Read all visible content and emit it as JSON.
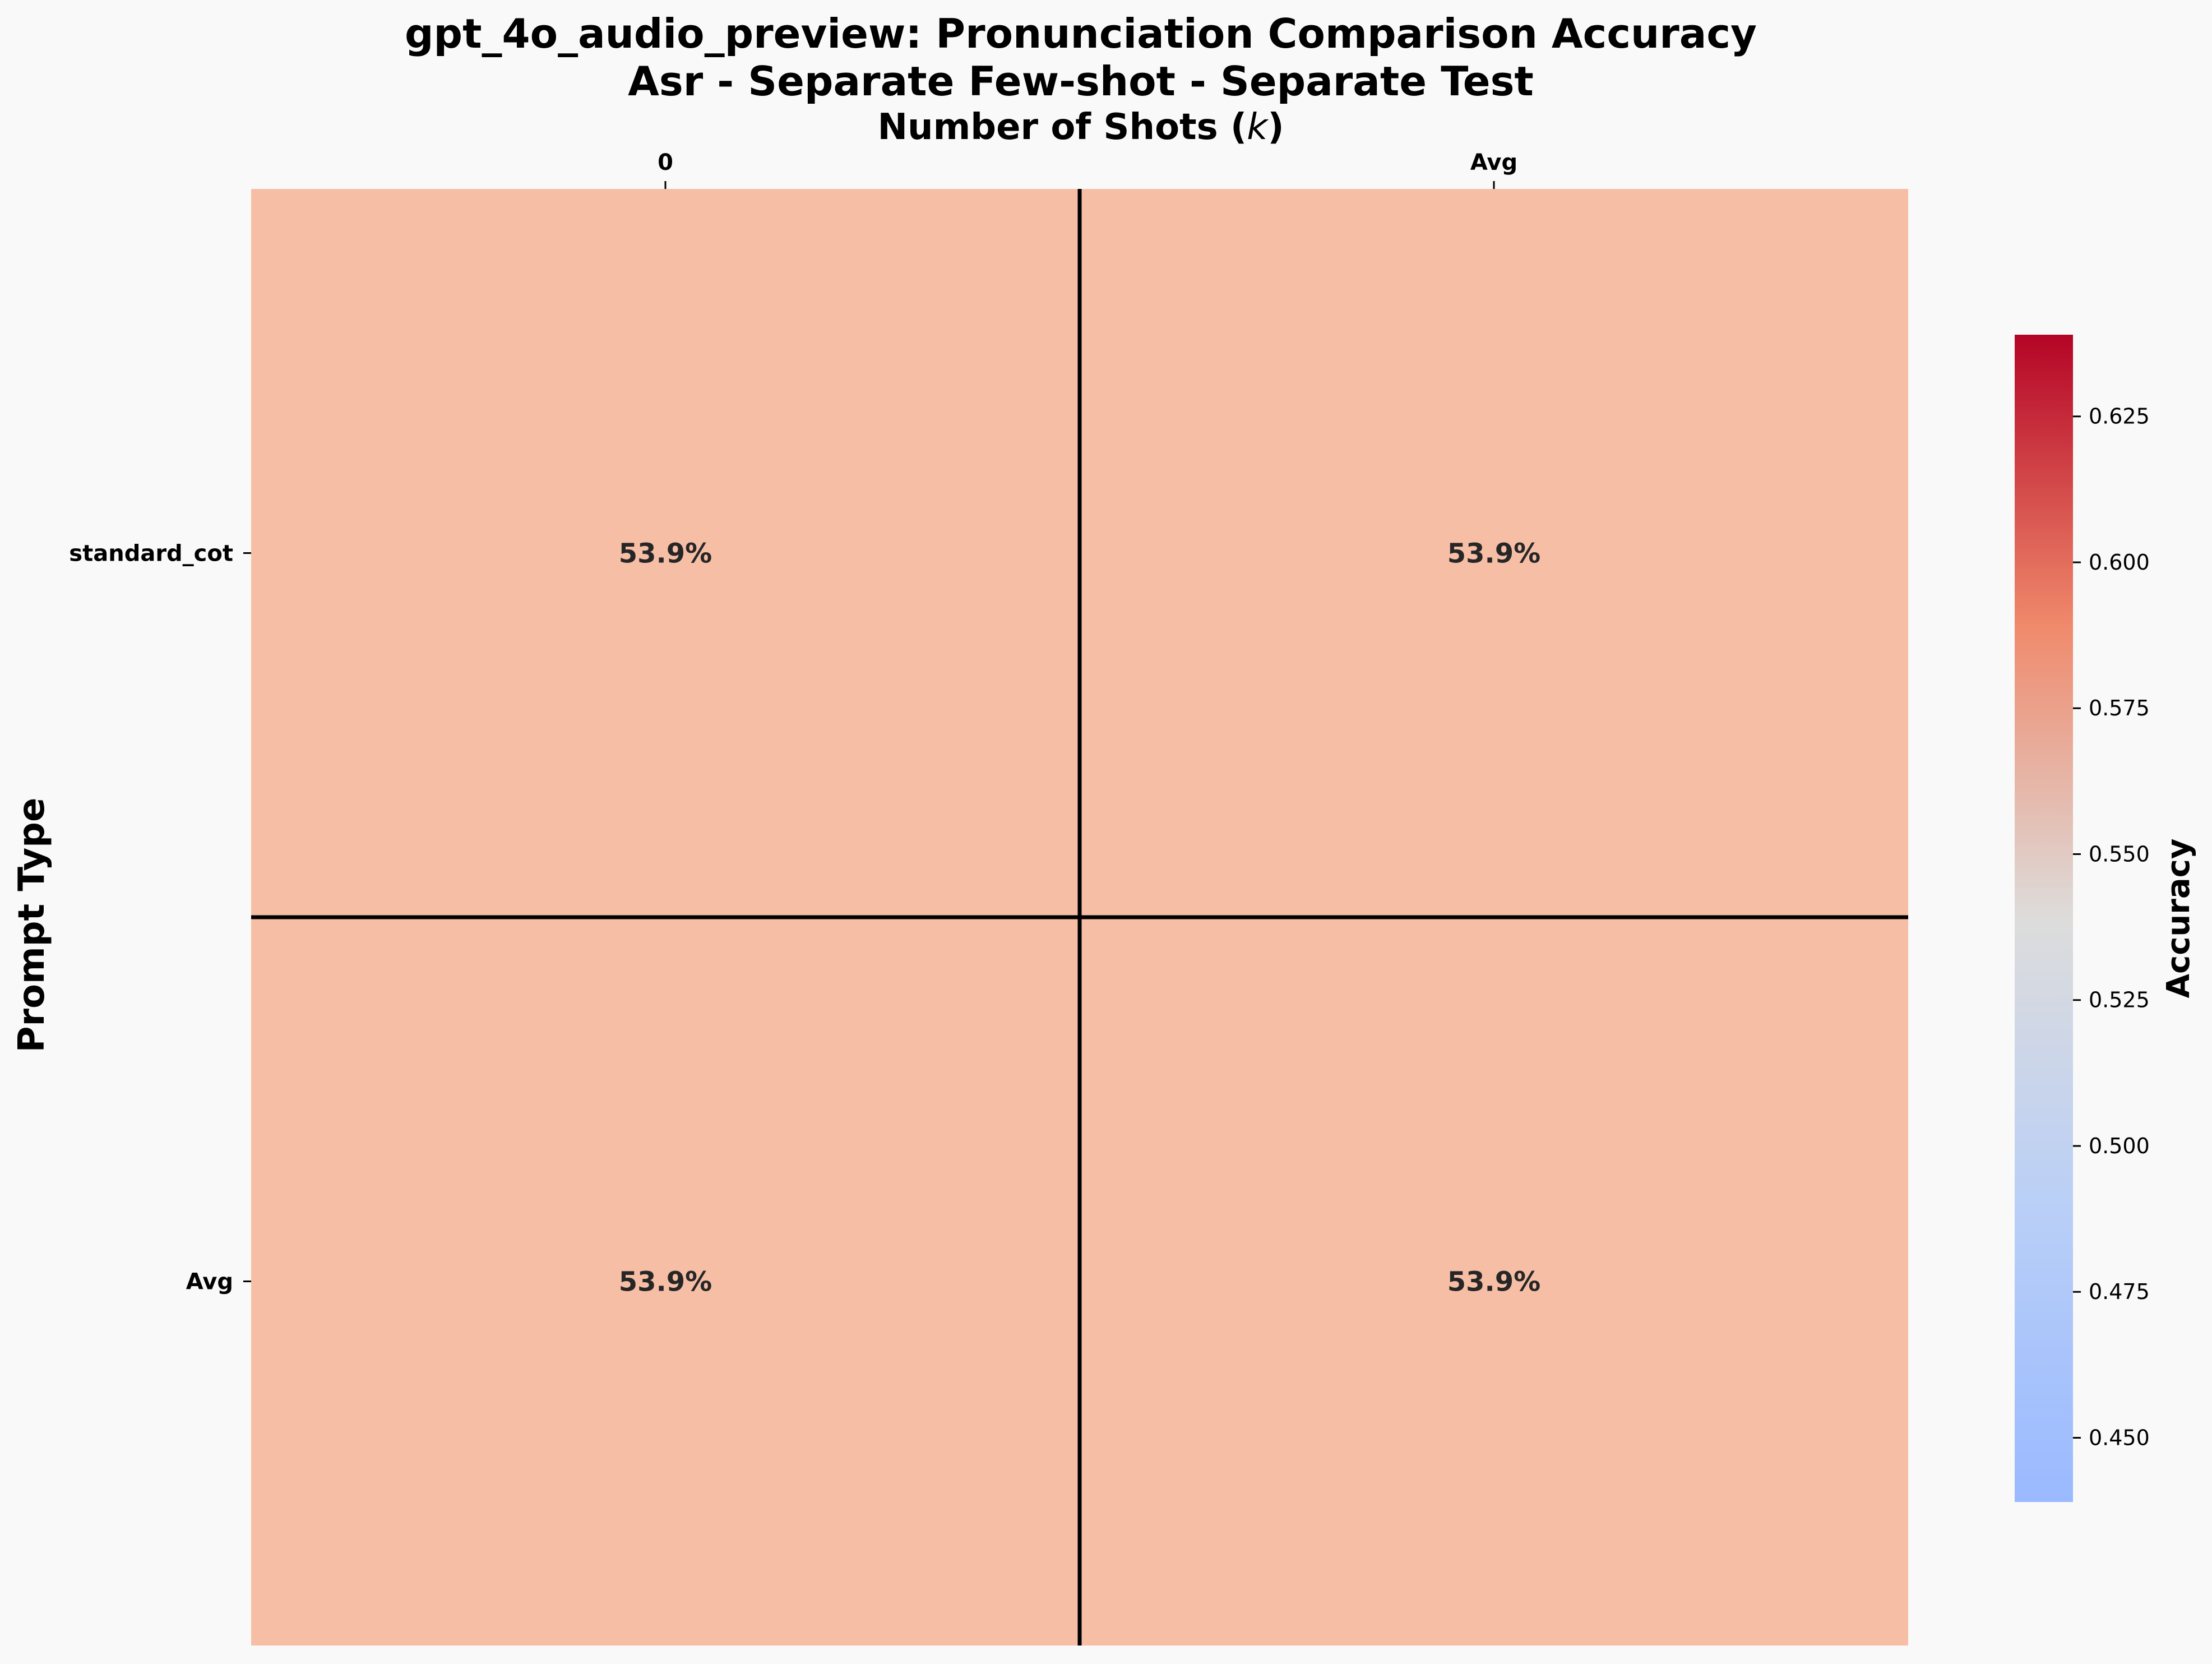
{
  "chart_data": {
    "type": "heatmap",
    "title_lines": [
      "gpt_4o_audio_preview: Pronunciation Comparison Accuracy",
      "Asr - Separate Few-shot - Separate Test"
    ],
    "xlabel": "Number of Shots (k)",
    "ylabel": "Prompt Type",
    "x_categories": [
      "0",
      "Avg"
    ],
    "y_categories": [
      "standard_cot",
      "Avg"
    ],
    "values": [
      [
        0.539,
        0.539
      ],
      [
        0.539,
        0.539
      ]
    ],
    "cell_labels": [
      [
        "53.9%",
        "53.9%"
      ],
      [
        "53.9%",
        "53.9%"
      ]
    ],
    "colorbar": {
      "label": "Accuracy",
      "range": [
        0.439,
        0.639
      ],
      "ticks": [
        0.45,
        0.475,
        0.5,
        0.525,
        0.55,
        0.575,
        0.6,
        0.625
      ],
      "tick_labels": [
        "0.450",
        "0.475",
        "0.500",
        "0.525",
        "0.550",
        "0.575",
        "0.600",
        "0.625"
      ],
      "colormap": "coolwarm",
      "low_color": "#9ab9ff",
      "mid_color": "#dddcdb",
      "high_color": "#b40426"
    },
    "cell_color": "#f7bea6",
    "separator_color": "#000000",
    "x_axis_position": "top"
  }
}
